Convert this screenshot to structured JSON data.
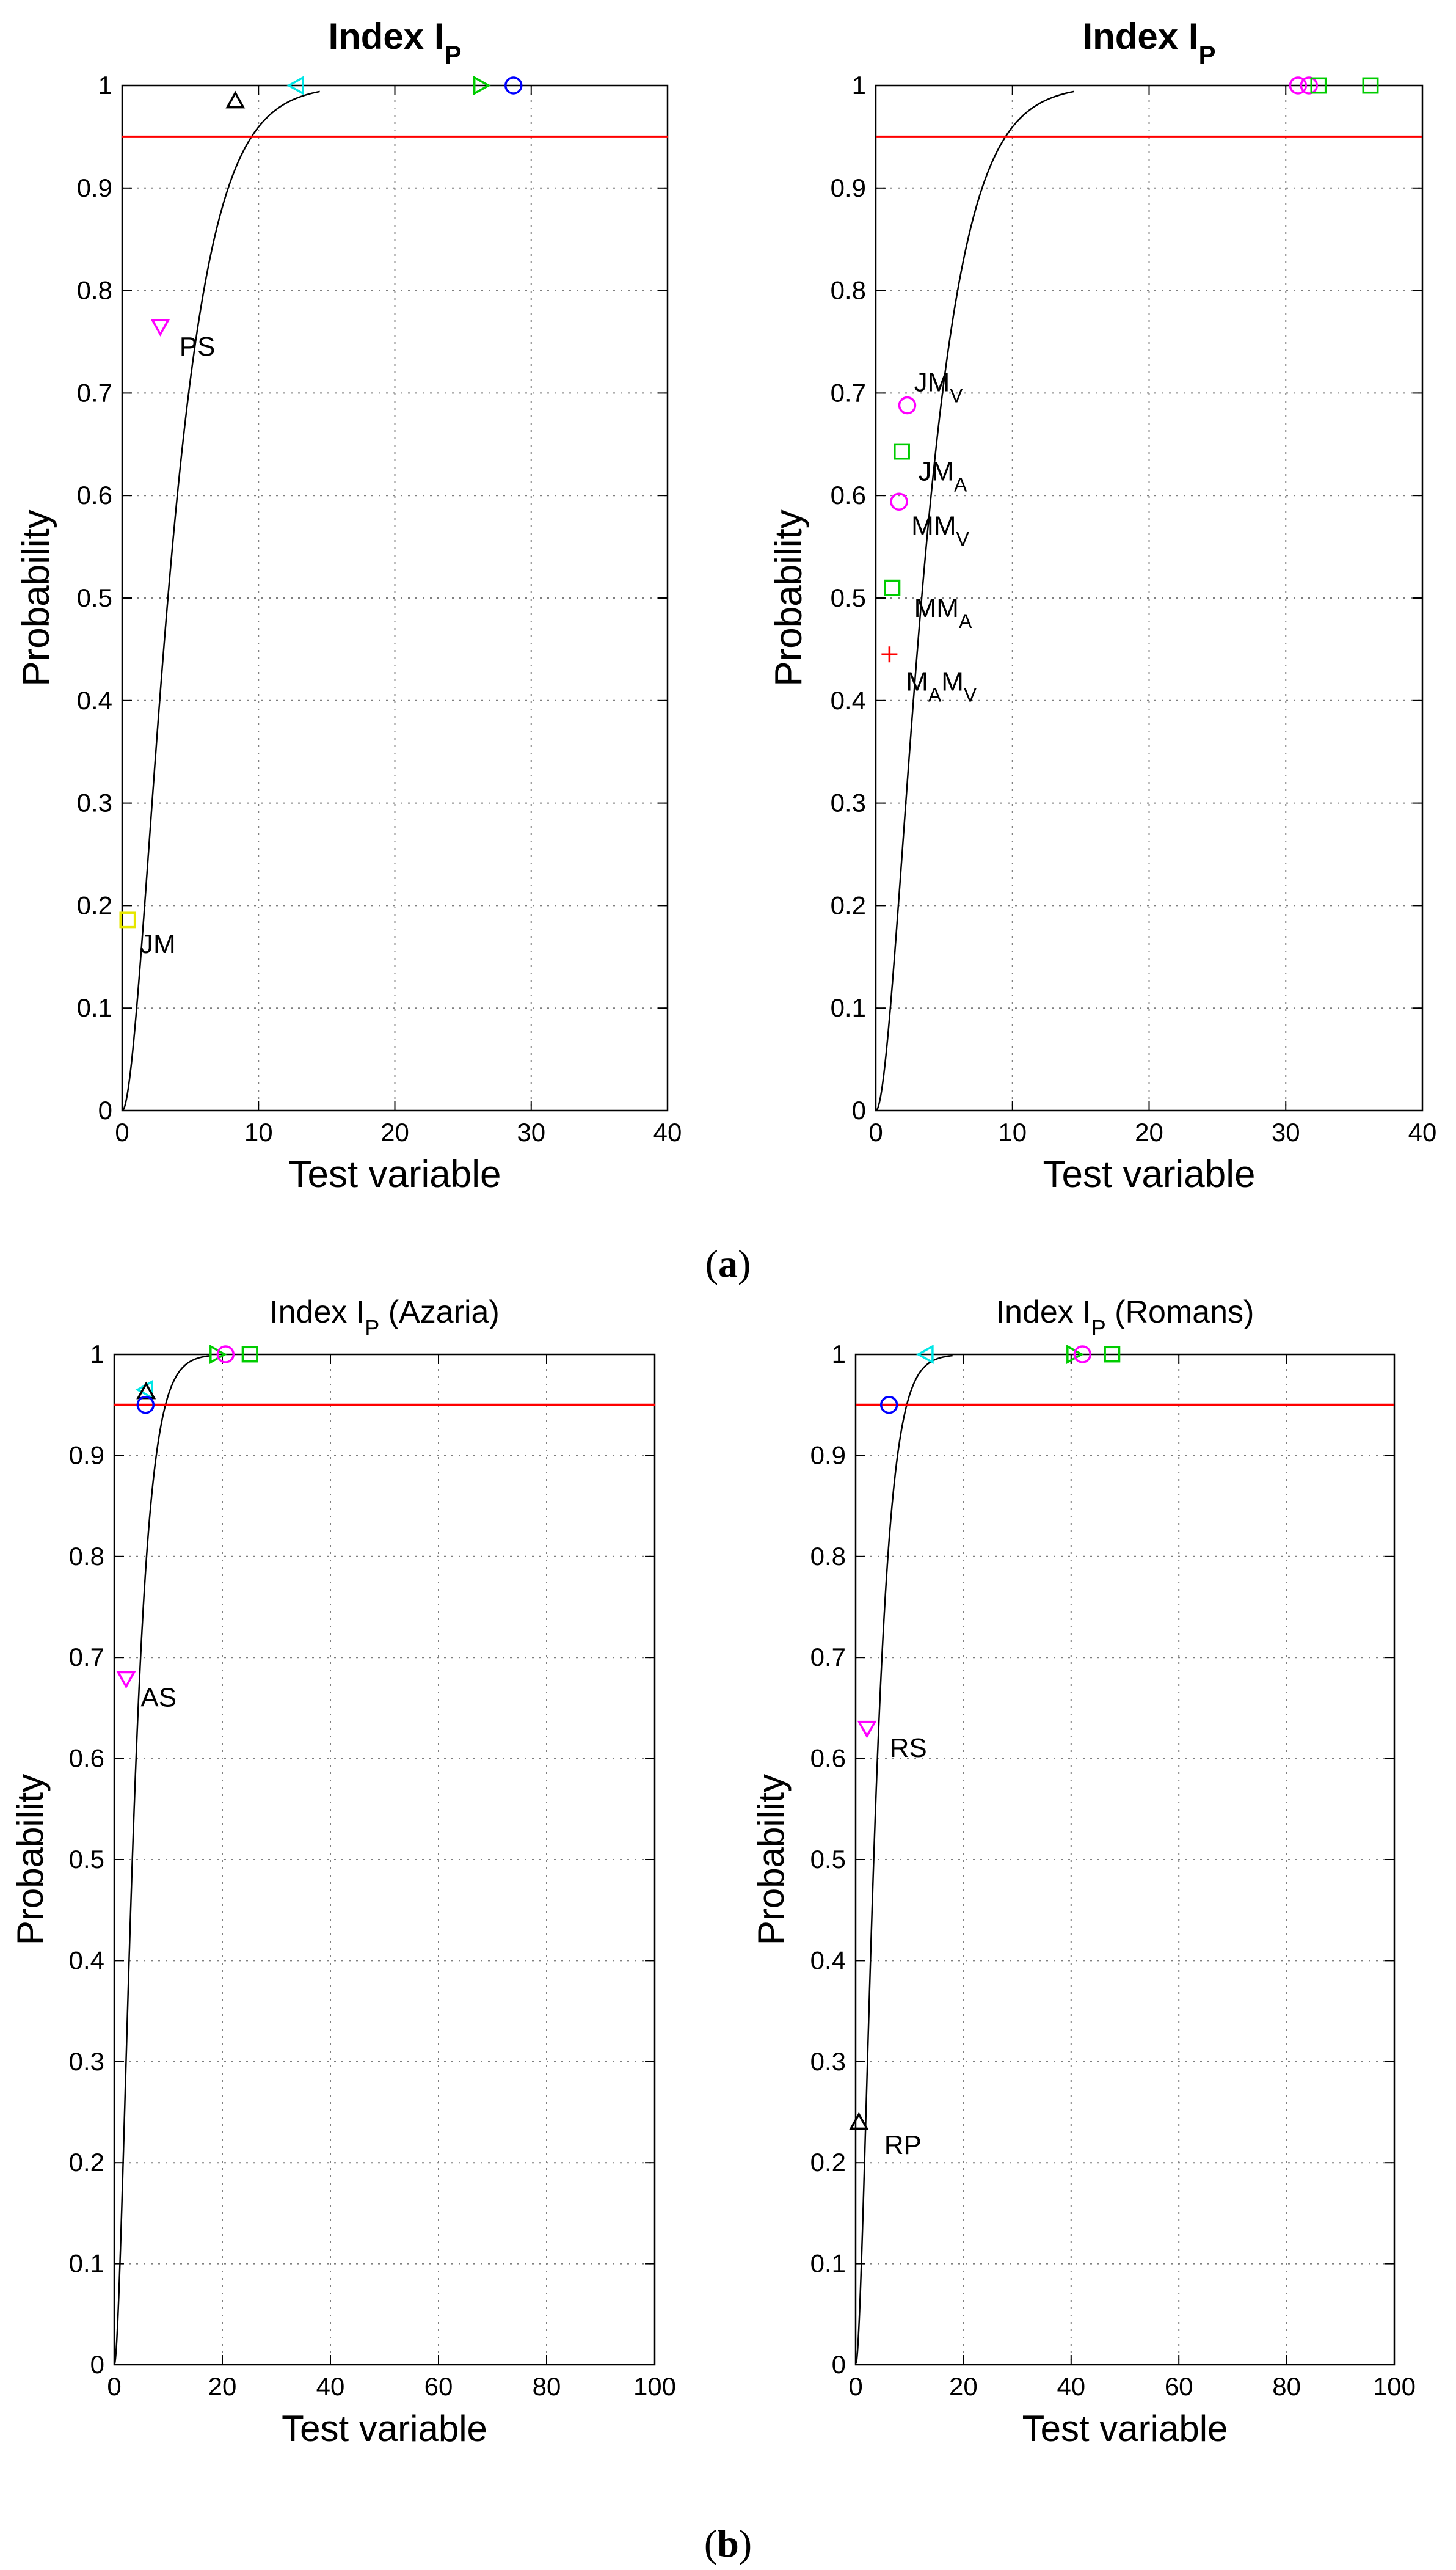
{
  "figure": {
    "panel_labels": [
      {
        "open": "(",
        "letter": "a",
        "close": ")"
      },
      {
        "open": "(",
        "letter": "b",
        "close": ")"
      }
    ]
  },
  "colors": {
    "curve": "#000000",
    "threshold": "#ff0000",
    "grid": "#7f7f7f",
    "magenta": "#ff00ff",
    "green": "#00cc00",
    "yellow": "#e6e600",
    "cyan": "#00e6e6",
    "blue": "#0000ff",
    "black": "#000000",
    "red": "#ff0000"
  },
  "chart_data": [
    {
      "type": "line",
      "title": {
        "main": "Index I",
        "sub": "P",
        "suffix": ""
      },
      "title_style": "bold",
      "xlabel": "Test variable",
      "ylabel": "Probability",
      "xlim": [
        0,
        40
      ],
      "ylim": [
        0,
        1
      ],
      "xticks": [
        0,
        10,
        20,
        30,
        40
      ],
      "yticks": [
        0,
        0.1,
        0.2,
        0.3,
        0.4,
        0.5,
        0.6,
        0.7,
        0.8,
        0.9,
        1
      ],
      "grid": true,
      "threshold": 0.95,
      "curve": {
        "df": 4,
        "x_start": 0.05,
        "x_end": 14.5
      },
      "markers": [
        {
          "x": 8.3,
          "y": 0.985,
          "shape": "triangle-up",
          "color": "black"
        },
        {
          "x": 12.8,
          "y": 1.0,
          "shape": "triangle-left",
          "color": "cyan"
        },
        {
          "x": 26.3,
          "y": 1.0,
          "shape": "triangle-right",
          "color": "green"
        },
        {
          "x": 28.7,
          "y": 1.0,
          "shape": "circle",
          "color": "blue"
        },
        {
          "x": 2.8,
          "y": 0.765,
          "shape": "triangle-down",
          "color": "magenta"
        },
        {
          "x": 0.4,
          "y": 0.186,
          "shape": "square",
          "color": "yellow"
        }
      ],
      "labels": [
        {
          "x": 4.2,
          "y": 0.745,
          "main": "PS",
          "sub": ""
        },
        {
          "x": 1.3,
          "y": 0.162,
          "main": "JM",
          "sub": ""
        }
      ]
    },
    {
      "type": "line",
      "title": {
        "main": "Index I",
        "sub": "P",
        "suffix": ""
      },
      "title_style": "bold",
      "xlabel": "Test variable",
      "ylabel": "Probability",
      "xlim": [
        0,
        40
      ],
      "ylim": [
        0,
        1
      ],
      "xticks": [
        0,
        10,
        20,
        30,
        40
      ],
      "yticks": [
        0,
        0.1,
        0.2,
        0.3,
        0.4,
        0.5,
        0.6,
        0.7,
        0.8,
        0.9,
        1
      ],
      "grid": true,
      "threshold": 0.95,
      "curve": {
        "df": 4,
        "x_start": 0.05,
        "x_end": 14.5
      },
      "markers": [
        {
          "x": 30.9,
          "y": 1.0,
          "shape": "circle",
          "color": "magenta"
        },
        {
          "x": 31.7,
          "y": 1.0,
          "shape": "circle",
          "color": "magenta"
        },
        {
          "x": 32.4,
          "y": 1.0,
          "shape": "square",
          "color": "green"
        },
        {
          "x": 36.2,
          "y": 1.0,
          "shape": "square",
          "color": "green"
        },
        {
          "x": 2.3,
          "y": 0.688,
          "shape": "circle",
          "color": "magenta"
        },
        {
          "x": 1.9,
          "y": 0.643,
          "shape": "square",
          "color": "green"
        },
        {
          "x": 1.7,
          "y": 0.594,
          "shape": "circle",
          "color": "magenta"
        },
        {
          "x": 1.2,
          "y": 0.51,
          "shape": "square",
          "color": "green"
        },
        {
          "x": 1.0,
          "y": 0.445,
          "shape": "plus",
          "color": "red"
        }
      ],
      "labels": [
        {
          "x": 2.8,
          "y": 0.71,
          "main": "JM",
          "sub": "V"
        },
        {
          "x": 3.1,
          "y": 0.623,
          "main": "JM",
          "sub": "A"
        },
        {
          "x": 2.6,
          "y": 0.57,
          "main": "MM",
          "sub": "V"
        },
        {
          "x": 2.8,
          "y": 0.49,
          "main": "MM",
          "sub": "A"
        },
        {
          "x": 2.2,
          "y": 0.418,
          "main": "M",
          "sub": "A",
          "main2": "M",
          "sub2": "V"
        }
      ]
    },
    {
      "type": "line",
      "title": {
        "main": "Index I",
        "sub": "P",
        "suffix": " (Azaria)"
      },
      "title_style": "normal",
      "xlabel": "Test variable",
      "ylabel": "Probability",
      "xlim": [
        0,
        100
      ],
      "ylim": [
        0,
        1
      ],
      "xticks": [
        0,
        20,
        40,
        60,
        80,
        100
      ],
      "yticks": [
        0,
        0.1,
        0.2,
        0.3,
        0.4,
        0.5,
        0.6,
        0.7,
        0.8,
        0.9,
        1
      ],
      "grid": true,
      "threshold": 0.95,
      "curve": {
        "df": 4,
        "x_start": 0.12,
        "x_end": 18
      },
      "markers": [
        {
          "x": 5.8,
          "y": 0.965,
          "shape": "triangle-left",
          "color": "cyan"
        },
        {
          "x": 5.9,
          "y": 0.963,
          "shape": "triangle-up",
          "color": "black"
        },
        {
          "x": 5.8,
          "y": 0.95,
          "shape": "circle",
          "color": "blue"
        },
        {
          "x": 19.0,
          "y": 1.0,
          "shape": "triangle-right",
          "color": "green"
        },
        {
          "x": 20.6,
          "y": 1.0,
          "shape": "circle",
          "color": "magenta"
        },
        {
          "x": 25.1,
          "y": 1.0,
          "shape": "square",
          "color": "green"
        },
        {
          "x": 2.2,
          "y": 0.679,
          "shape": "triangle-down",
          "color": "magenta"
        }
      ],
      "labels": [
        {
          "x": 4.9,
          "y": 0.66,
          "main": "AS",
          "sub": ""
        }
      ]
    },
    {
      "type": "line",
      "title": {
        "main": "Index I",
        "sub": "P",
        "suffix": " (Romans)"
      },
      "title_style": "normal",
      "xlabel": "Test variable",
      "ylabel": "Probability",
      "xlim": [
        0,
        100
      ],
      "ylim": [
        0,
        1
      ],
      "xticks": [
        0,
        20,
        40,
        60,
        80,
        100
      ],
      "yticks": [
        0,
        0.1,
        0.2,
        0.3,
        0.4,
        0.5,
        0.6,
        0.7,
        0.8,
        0.9,
        1
      ],
      "grid": true,
      "threshold": 0.95,
      "curve": {
        "df": 4,
        "x_start": 0.12,
        "x_end": 18
      },
      "markers": [
        {
          "x": 6.2,
          "y": 0.95,
          "shape": "circle",
          "color": "blue"
        },
        {
          "x": 13.1,
          "y": 1.0,
          "shape": "triangle-left",
          "color": "cyan"
        },
        {
          "x": 40.5,
          "y": 1.0,
          "shape": "triangle-right",
          "color": "green"
        },
        {
          "x": 42.1,
          "y": 1.0,
          "shape": "circle",
          "color": "magenta"
        },
        {
          "x": 47.6,
          "y": 1.0,
          "shape": "square",
          "color": "green"
        },
        {
          "x": 2.1,
          "y": 0.63,
          "shape": "triangle-down",
          "color": "magenta"
        },
        {
          "x": 0.6,
          "y": 0.24,
          "shape": "triangle-up",
          "color": "black"
        }
      ],
      "labels": [
        {
          "x": 6.3,
          "y": 0.61,
          "main": "RS",
          "sub": ""
        },
        {
          "x": 5.3,
          "y": 0.217,
          "main": "RP",
          "sub": ""
        }
      ]
    }
  ]
}
